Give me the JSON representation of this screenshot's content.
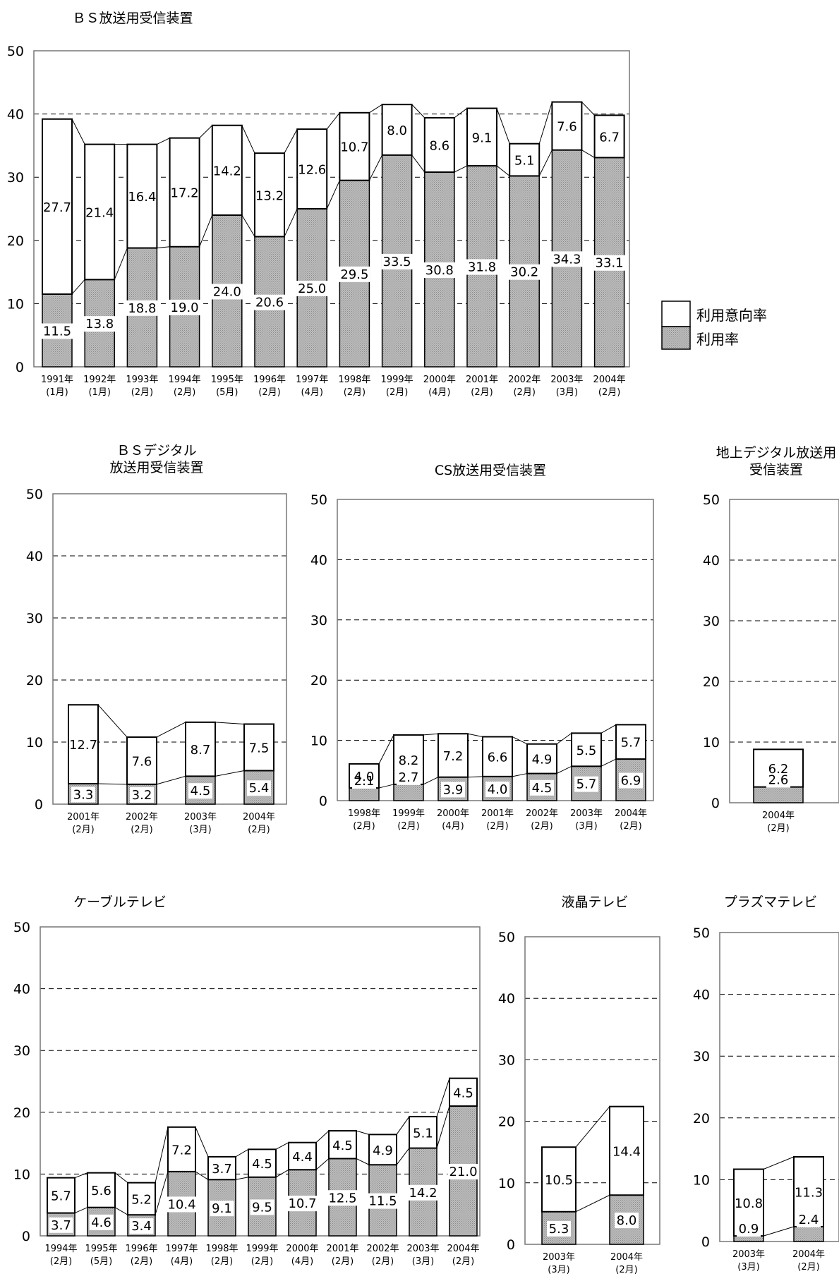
{
  "legend": {
    "intent": "利用意向率",
    "usage": "利用率",
    "intent_color": "#ffffff",
    "usage_color": "#b5b5b5"
  },
  "chart_data": [
    {
      "type": "bar",
      "stacked": true,
      "title": "ＢＳ放送用受信装置",
      "ylim": [
        0,
        50
      ],
      "yticks": [
        0,
        10,
        20,
        30,
        40,
        50
      ],
      "grid": "dashed",
      "categories": [
        "1991年",
        "1992年",
        "1993年",
        "1994年",
        "1995年",
        "1996年",
        "1997年",
        "1998年",
        "1999年",
        "2000年",
        "2001年",
        "2002年",
        "2003年",
        "2004年"
      ],
      "months": [
        "(1月)",
        "(1月)",
        "(2月)",
        "(2月)",
        "(5月)",
        "(2月)",
        "(4月)",
        "(2月)",
        "(2月)",
        "(4月)",
        "(2月)",
        "(2月)",
        "(3月)",
        "(2月)"
      ],
      "series": [
        {
          "name": "利用率",
          "values": [
            11.5,
            13.8,
            18.8,
            19.0,
            24.0,
            20.6,
            25.0,
            29.5,
            33.5,
            30.8,
            31.8,
            30.2,
            34.3,
            33.1
          ]
        },
        {
          "name": "利用意向率",
          "values": [
            27.7,
            21.4,
            16.4,
            17.2,
            14.2,
            13.2,
            12.6,
            10.7,
            8.0,
            8.6,
            9.1,
            5.1,
            7.6,
            6.7
          ]
        }
      ]
    },
    {
      "type": "bar",
      "stacked": true,
      "title": [
        "ＢＳデジタル",
        "放送用受信装置"
      ],
      "ylim": [
        0,
        50
      ],
      "yticks": [
        0,
        10,
        20,
        30,
        40,
        50
      ],
      "grid": "dashed",
      "categories": [
        "2001年",
        "2002年",
        "2003年",
        "2004年"
      ],
      "months": [
        "(2月)",
        "(2月)",
        "(3月)",
        "(2月)"
      ],
      "series": [
        {
          "name": "利用率",
          "values": [
            3.3,
            3.2,
            4.5,
            5.4
          ]
        },
        {
          "name": "利用意向率",
          "values": [
            12.7,
            7.6,
            8.7,
            7.5
          ]
        }
      ]
    },
    {
      "type": "bar",
      "stacked": true,
      "title": "CS放送用受信装置",
      "ylim": [
        0,
        50
      ],
      "yticks": [
        0,
        10,
        20,
        30,
        40,
        50
      ],
      "grid": "dashed",
      "categories": [
        "1998年",
        "1999年",
        "2000年",
        "2001年",
        "2002年",
        "2003年",
        "2004年"
      ],
      "months": [
        "(2月)",
        "(2月)",
        "(4月)",
        "(2月)",
        "(2月)",
        "(3月)",
        "(2月)"
      ],
      "series": [
        {
          "name": "利用率",
          "values": [
            2.1,
            2.7,
            3.9,
            4.0,
            4.5,
            5.7,
            6.9
          ]
        },
        {
          "name": "利用意向率",
          "values": [
            4.0,
            8.2,
            7.2,
            6.6,
            4.9,
            5.5,
            5.7
          ]
        }
      ]
    },
    {
      "type": "bar",
      "stacked": true,
      "title": [
        "地上デジタル放送用",
        "受信装置"
      ],
      "ylim": [
        0,
        50
      ],
      "yticks": [
        0,
        10,
        20,
        30,
        40,
        50
      ],
      "grid": "dashed",
      "categories": [
        "2004年"
      ],
      "months": [
        "(2月)"
      ],
      "series": [
        {
          "name": "利用率",
          "values": [
            2.6
          ]
        },
        {
          "name": "利用意向率",
          "values": [
            6.2
          ]
        }
      ]
    },
    {
      "type": "bar",
      "stacked": true,
      "title": "ケーブルテレビ",
      "ylim": [
        0,
        50
      ],
      "yticks": [
        0,
        10,
        20,
        30,
        40,
        50
      ],
      "grid": "dashed",
      "categories": [
        "1994年",
        "1995年",
        "1996年",
        "1997年",
        "1998年",
        "1999年",
        "2000年",
        "2001年",
        "2002年",
        "2003年",
        "2004年"
      ],
      "months": [
        "(2月)",
        "(5月)",
        "(2月)",
        "(4月)",
        "(2月)",
        "(2月)",
        "(4月)",
        "(2月)",
        "(2月)",
        "(3月)",
        "(2月)"
      ],
      "series": [
        {
          "name": "利用率",
          "values": [
            3.7,
            4.6,
            3.4,
            10.4,
            9.1,
            9.5,
            10.7,
            12.5,
            11.5,
            14.2,
            21.0
          ]
        },
        {
          "name": "利用意向率",
          "values": [
            5.7,
            5.6,
            5.2,
            7.2,
            3.7,
            4.5,
            4.4,
            4.5,
            4.9,
            5.1,
            4.5
          ]
        }
      ]
    },
    {
      "type": "bar",
      "stacked": true,
      "title": "液晶テレビ",
      "ylim": [
        0,
        50
      ],
      "yticks": [
        0,
        10,
        20,
        30,
        40,
        50
      ],
      "grid": "dashed",
      "categories": [
        "2003年",
        "2004年"
      ],
      "months": [
        "(3月)",
        "(2月)"
      ],
      "series": [
        {
          "name": "利用率",
          "values": [
            5.3,
            8.0
          ]
        },
        {
          "name": "利用意向率",
          "values": [
            10.5,
            14.4
          ]
        }
      ]
    },
    {
      "type": "bar",
      "stacked": true,
      "title": "プラズマテレビ",
      "ylim": [
        0,
        50
      ],
      "yticks": [
        0,
        10,
        20,
        30,
        40,
        50
      ],
      "grid": "dashed",
      "categories": [
        "2003年",
        "2004年"
      ],
      "months": [
        "(3月)",
        "(2月)"
      ],
      "series": [
        {
          "name": "利用率",
          "values": [
            0.9,
            2.4
          ]
        },
        {
          "name": "利用意向率",
          "values": [
            10.8,
            11.3
          ]
        }
      ]
    }
  ]
}
